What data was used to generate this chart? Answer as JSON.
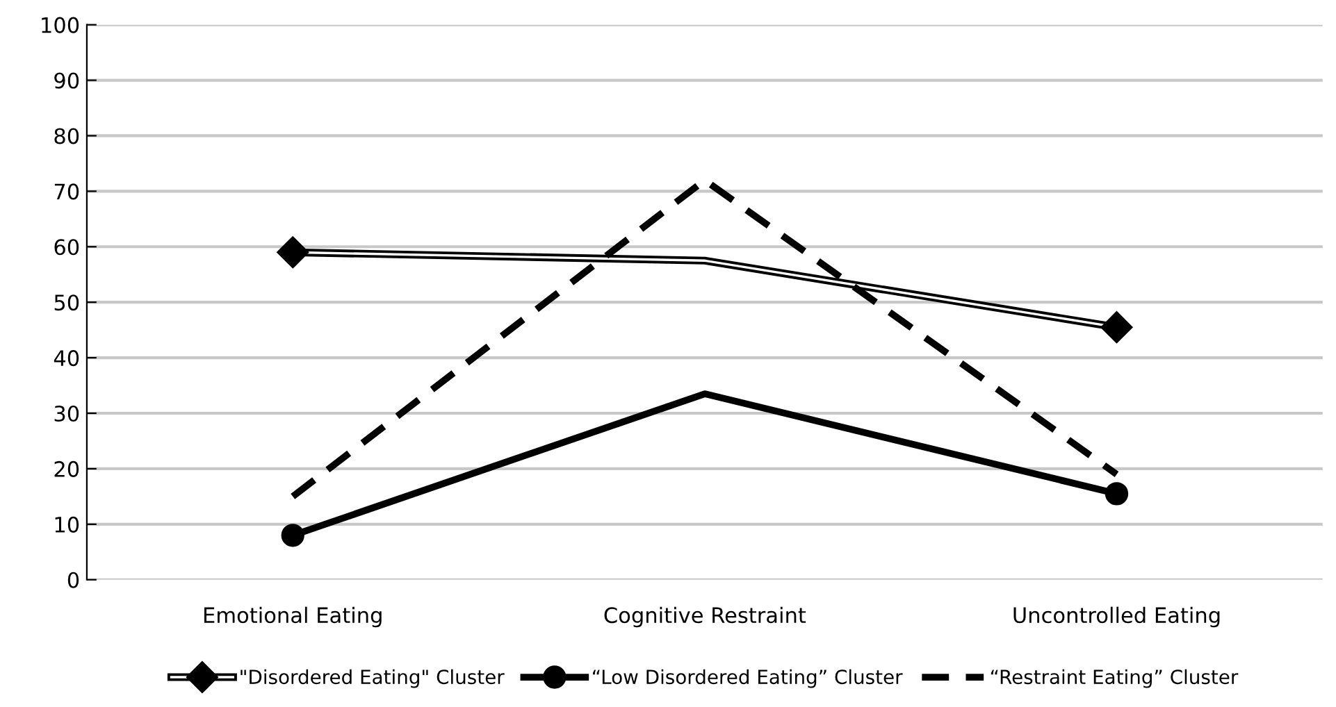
{
  "chart_data": {
    "type": "line",
    "categories": [
      "Emotional Eating",
      "Cognitive Restraint",
      "Uncontrolled Eating"
    ],
    "series": [
      {
        "name": "\"Disordered Eating\" Cluster",
        "color": "#000000",
        "values": [
          59,
          57.5,
          45.5
        ],
        "marker": "diamond",
        "line_style": "solid"
      },
      {
        "name": "“Low Disordered Eating” Cluster",
        "color": "#000000",
        "values": [
          8,
          33.5,
          15.5
        ],
        "marker": "circle",
        "line_style": "solid"
      },
      {
        "name": "“Restraint Eating” Cluster",
        "color": "#000000",
        "values": [
          15,
          72,
          19
        ],
        "marker": "none",
        "line_style": "dashed"
      }
    ],
    "ylim": [
      0,
      100
    ],
    "yticks": [
      0,
      10,
      20,
      30,
      40,
      50,
      60,
      70,
      80,
      90,
      100
    ],
    "grid": "y",
    "legend": "bottom"
  }
}
